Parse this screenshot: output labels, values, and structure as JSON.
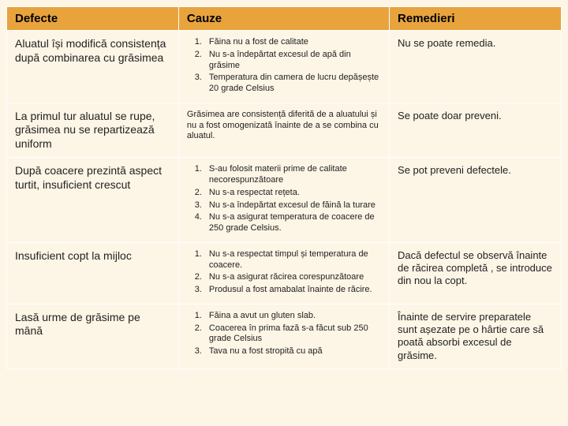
{
  "table": {
    "headers": {
      "defecte": "Defecte",
      "cauze": "Cauze",
      "remedieri": "Remedieri"
    },
    "rows": [
      {
        "defect": "Aluatul își modifică consistența după combinarea cu grăsimea",
        "cauze_list": [
          "Făina nu a fost de calitate",
          "Nu s-a îndepărtat excesul de apă din grăsime",
          "Temperatura din camera de lucru depășește 20 grade Celsius"
        ],
        "remedy": "Nu se poate remedia."
      },
      {
        "defect": "La primul tur aluatul se rupe, grăsimea nu se repartizează uniform",
        "cauze_text": "Grăsimea are consistență diferită de a aluatului și nu a fost omogenizată înainte de a se combina cu aluatul.",
        "remedy": "Se poate doar preveni."
      },
      {
        "defect": "După coacere prezintă aspect turtit, insuficient crescut",
        "cauze_list": [
          "S-au folosit materii prime de calitate necorespunzătoare",
          "Nu s-a respectat rețeta.",
          "Nu s-a îndepărtat excesul de făină la turare",
          "Nu s-a asigurat temperatura de coacere de 250 grade Celsius."
        ],
        "remedy": "Se pot preveni defectele."
      },
      {
        "defect": "Insuficient copt la mijloc",
        "cauze_list": [
          "Nu s-a respectat timpul și temperatura de coacere.",
          "Nu s-a asigurat răcirea corespunzătoare",
          "Produsul a fost amabalat înainte de răcire."
        ],
        "remedy": "Dacă defectul se observă înainte de răcirea completă , se introduce din nou la copt."
      },
      {
        "defect": "Lasă urme de grăsime pe mână",
        "cauze_list": [
          "Făina a avut un gluten slab.",
          "Coacerea în prima fază s-a făcut sub 250 grade Celsius",
          "Tava nu a fost stropită cu apă"
        ],
        "remedy": "Înainte de servire preparatele sunt așezate pe o hârtie care să poată absorbi excesul de grăsime."
      }
    ]
  },
  "colors": {
    "header_bg": "#e8a33d",
    "cell_bg": "#fdf5e6",
    "border": "#ffffff",
    "text": "#222222"
  }
}
